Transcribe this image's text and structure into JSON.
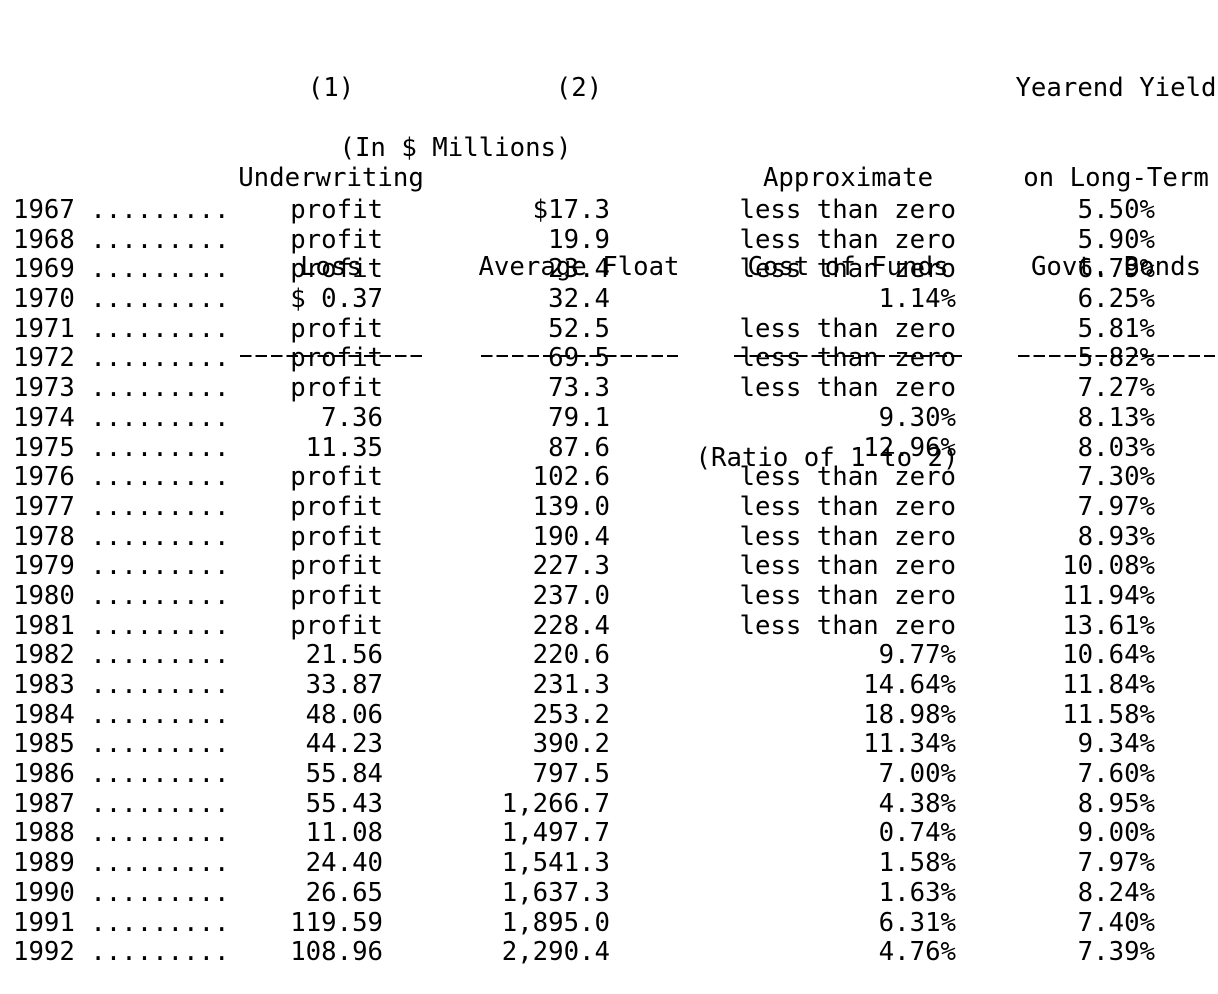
{
  "page": {
    "background": "#ffffff",
    "text_color": "#000000"
  },
  "table": {
    "header": {
      "underwriting": {
        "number": "(1)",
        "line1": "Underwriting",
        "line2": "Loss"
      },
      "float": {
        "number": "(2)",
        "title": "Average Float"
      },
      "cost": {
        "line1": "Approximate",
        "line2": "Cost of Funds",
        "unit": "(Ratio of 1 to 2)"
      },
      "yield": {
        "line1": "Yearend Yield",
        "line2": "on Long-Term",
        "line3": "Govt. Bonds"
      },
      "units_note": "(In $ Millions)"
    },
    "row_leader": " .........",
    "rows": [
      {
        "year": "1967",
        "underwriting_loss": "profit",
        "average_float": "$17.3",
        "cost_of_funds": "less than zero",
        "yearend_yield": "5.50%"
      },
      {
        "year": "1968",
        "underwriting_loss": "profit",
        "average_float": "19.9",
        "cost_of_funds": "less than zero",
        "yearend_yield": "5.90%"
      },
      {
        "year": "1969",
        "underwriting_loss": "profit",
        "average_float": "23.4",
        "cost_of_funds": "less than zero",
        "yearend_yield": "6.79%"
      },
      {
        "year": "1970",
        "underwriting_loss": "$ 0.37",
        "average_float": "32.4",
        "cost_of_funds": "1.14%",
        "yearend_yield": "6.25%"
      },
      {
        "year": "1971",
        "underwriting_loss": "profit",
        "average_float": "52.5",
        "cost_of_funds": "less than zero",
        "yearend_yield": "5.81%"
      },
      {
        "year": "1972",
        "underwriting_loss": "profit",
        "average_float": "69.5",
        "cost_of_funds": "less than zero",
        "yearend_yield": "5.82%"
      },
      {
        "year": "1973",
        "underwriting_loss": "profit",
        "average_float": "73.3",
        "cost_of_funds": "less than zero",
        "yearend_yield": "7.27%"
      },
      {
        "year": "1974",
        "underwriting_loss": "7.36",
        "average_float": "79.1",
        "cost_of_funds": "9.30%",
        "yearend_yield": "8.13%"
      },
      {
        "year": "1975",
        "underwriting_loss": "11.35",
        "average_float": "87.6",
        "cost_of_funds": "12.96%",
        "yearend_yield": "8.03%"
      },
      {
        "year": "1976",
        "underwriting_loss": "profit",
        "average_float": "102.6",
        "cost_of_funds": "less than zero",
        "yearend_yield": "7.30%"
      },
      {
        "year": "1977",
        "underwriting_loss": "profit",
        "average_float": "139.0",
        "cost_of_funds": "less than zero",
        "yearend_yield": "7.97%"
      },
      {
        "year": "1978",
        "underwriting_loss": "profit",
        "average_float": "190.4",
        "cost_of_funds": "less than zero",
        "yearend_yield": "8.93%"
      },
      {
        "year": "1979",
        "underwriting_loss": "profit",
        "average_float": "227.3",
        "cost_of_funds": "less than zero",
        "yearend_yield": "10.08%"
      },
      {
        "year": "1980",
        "underwriting_loss": "profit",
        "average_float": "237.0",
        "cost_of_funds": "less than zero",
        "yearend_yield": "11.94%"
      },
      {
        "year": "1981",
        "underwriting_loss": "profit",
        "average_float": "228.4",
        "cost_of_funds": "less than zero",
        "yearend_yield": "13.61%"
      },
      {
        "year": "1982",
        "underwriting_loss": "21.56",
        "average_float": "220.6",
        "cost_of_funds": "9.77%",
        "yearend_yield": "10.64%"
      },
      {
        "year": "1983",
        "underwriting_loss": "33.87",
        "average_float": "231.3",
        "cost_of_funds": "14.64%",
        "yearend_yield": "11.84%"
      },
      {
        "year": "1984",
        "underwriting_loss": "48.06",
        "average_float": "253.2",
        "cost_of_funds": "18.98%",
        "yearend_yield": "11.58%"
      },
      {
        "year": "1985",
        "underwriting_loss": "44.23",
        "average_float": "390.2",
        "cost_of_funds": "11.34%",
        "yearend_yield": "9.34%"
      },
      {
        "year": "1986",
        "underwriting_loss": "55.84",
        "average_float": "797.5",
        "cost_of_funds": "7.00%",
        "yearend_yield": "7.60%"
      },
      {
        "year": "1987",
        "underwriting_loss": "55.43",
        "average_float": "1,266.7",
        "cost_of_funds": "4.38%",
        "yearend_yield": "8.95%"
      },
      {
        "year": "1988",
        "underwriting_loss": "11.08",
        "average_float": "1,497.7",
        "cost_of_funds": "0.74%",
        "yearend_yield": "9.00%"
      },
      {
        "year": "1989",
        "underwriting_loss": "24.40",
        "average_float": "1,541.3",
        "cost_of_funds": "1.58%",
        "yearend_yield": "7.97%"
      },
      {
        "year": "1990",
        "underwriting_loss": "26.65",
        "average_float": "1,637.3",
        "cost_of_funds": "1.63%",
        "yearend_yield": "8.24%"
      },
      {
        "year": "1991",
        "underwriting_loss": "119.59",
        "average_float": "1,895.0",
        "cost_of_funds": "6.31%",
        "yearend_yield": "7.40%"
      },
      {
        "year": "1992",
        "underwriting_loss": "108.96",
        "average_float": "2,290.4",
        "cost_of_funds": "4.76%",
        "yearend_yield": "7.39%"
      }
    ]
  }
}
